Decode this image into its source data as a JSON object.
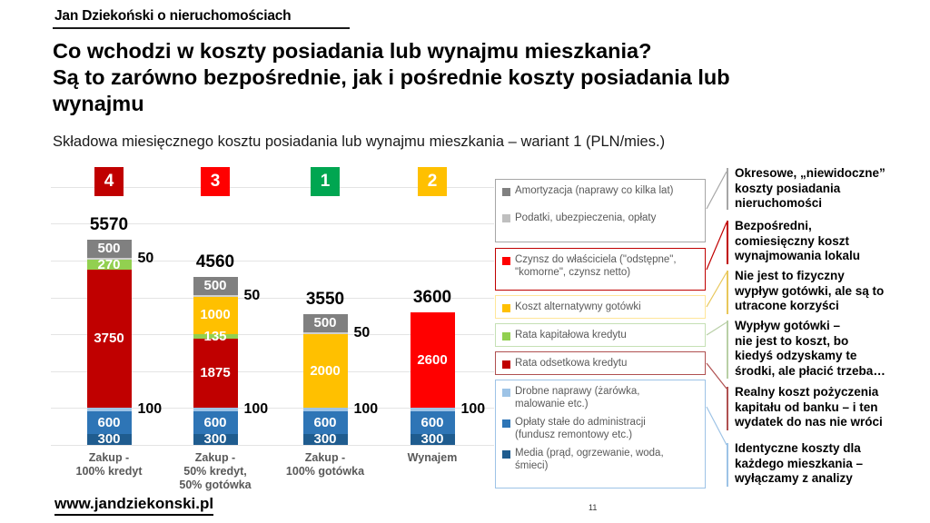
{
  "header": {
    "brand": "Jan Dziekoński o nieruchomościach",
    "title": "Co wchodzi w koszty posiadania lub wynajmu mieszkania?\nSą to zarówno bezpośrednie, jak i pośrednie koszty posiadania lub\nwynajmu",
    "subtitle": "Składowa miesięcznego kosztu posiadania lub wynajmu mieszkania – wariant 1 (PLN/mies.)"
  },
  "chart_data": {
    "type": "bar",
    "stacked": true,
    "title": "Składowa miesięcznego kosztu posiadania lub wynajmu mieszkania – wariant 1 (PLN/mies.)",
    "unit": "PLN/mies.",
    "ylim": [
      0,
      7000
    ],
    "gridline_step": 1000,
    "grid": true,
    "bars": [
      {
        "badge": "4",
        "badge_color": "#c00000",
        "total": 5570,
        "category": "Zakup -\n100% kredyt",
        "segments": [
          {
            "name": "Media (prąd, ogrzewanie, woda, śmieci)",
            "value": 300,
            "color": "#1f5c8f",
            "label_pos": "inside"
          },
          {
            "name": "Opłaty stałe do administracji (fundusz remontowy etc.)",
            "value": 600,
            "color": "#2e75b6",
            "label_pos": "inside"
          },
          {
            "name": "Drobne naprawy (żarówka, malowanie etc.)",
            "value": 100,
            "color": "#9dc3e6",
            "label_pos": "outside"
          },
          {
            "name": "Rata odsetkowa kredytu",
            "value": 3750,
            "color": "#c00000",
            "label_pos": "inside"
          },
          {
            "name": "Rata kapitałowa kredytu",
            "value": 270,
            "color": "#92d050",
            "label_pos": "inside"
          },
          {
            "name": "Podatki, ubezpieczenia, opłaty",
            "value": 50,
            "color": "#cfcfcf",
            "label_pos": "outside"
          },
          {
            "name": "Amortyzacja (naprawy co kilka lat)",
            "value": 500,
            "color": "#808080",
            "label_pos": "inside"
          }
        ]
      },
      {
        "badge": "3",
        "badge_color": "#ff0000",
        "total": 4560,
        "category": "Zakup -\n50% kredyt,\n50% gotówka",
        "segments": [
          {
            "name": "Media (prąd, ogrzewanie, woda, śmieci)",
            "value": 300,
            "color": "#1f5c8f",
            "label_pos": "inside"
          },
          {
            "name": "Opłaty stałe do administracji (fundusz remontowy etc.)",
            "value": 600,
            "color": "#2e75b6",
            "label_pos": "inside"
          },
          {
            "name": "Drobne naprawy (żarówka, malowanie etc.)",
            "value": 100,
            "color": "#9dc3e6",
            "label_pos": "outside"
          },
          {
            "name": "Rata odsetkowa kredytu",
            "value": 1875,
            "color": "#c00000",
            "label_pos": "inside"
          },
          {
            "name": "Rata kapitałowa kredytu",
            "value": 135,
            "color": "#92d050",
            "label_pos": "inside"
          },
          {
            "name": "Koszt alternatywny gotówki",
            "value": 1000,
            "color": "#ffc000",
            "label_pos": "inside"
          },
          {
            "name": "Podatki, ubezpieczenia, opłaty",
            "value": 50,
            "color": "#cfcfcf",
            "label_pos": "outside"
          },
          {
            "name": "Amortyzacja (naprawy co kilka lat)",
            "value": 500,
            "color": "#808080",
            "label_pos": "inside"
          }
        ]
      },
      {
        "badge": "1",
        "badge_color": "#00a651",
        "total": 3550,
        "category": "Zakup -\n100% gotówka",
        "segments": [
          {
            "name": "Media (prąd, ogrzewanie, woda, śmieci)",
            "value": 300,
            "color": "#1f5c8f",
            "label_pos": "inside"
          },
          {
            "name": "Opłaty stałe do administracji (fundusz remontowy etc.)",
            "value": 600,
            "color": "#2e75b6",
            "label_pos": "inside"
          },
          {
            "name": "Drobne naprawy (żarówka, malowanie etc.)",
            "value": 100,
            "color": "#9dc3e6",
            "label_pos": "outside"
          },
          {
            "name": "Koszt alternatywny gotówki",
            "value": 2000,
            "color": "#ffc000",
            "label_pos": "inside"
          },
          {
            "name": "Podatki, ubezpieczenia, opłaty",
            "value": 50,
            "color": "#cfcfcf",
            "label_pos": "outside"
          },
          {
            "name": "Amortyzacja (naprawy co kilka lat)",
            "value": 500,
            "color": "#808080",
            "label_pos": "inside"
          }
        ]
      },
      {
        "badge": "2",
        "badge_color": "#ffc000",
        "total": 3600,
        "category": "Wynajem",
        "segments": [
          {
            "name": "Media (prąd, ogrzewanie, woda, śmieci)",
            "value": 300,
            "color": "#1f5c8f",
            "label_pos": "inside"
          },
          {
            "name": "Opłaty stałe do administracji (fundusz remontowy etc.)",
            "value": 600,
            "color": "#2e75b6",
            "label_pos": "inside"
          },
          {
            "name": "Drobne naprawy (żarówka, malowanie etc.)",
            "value": 100,
            "color": "#9dc3e6",
            "label_pos": "outside"
          },
          {
            "name": "Czynsz do właściciela (\"odstępne\", \"komorne\", czynsz netto)",
            "value": 2600,
            "color": "#ff0000",
            "label_pos": "inside"
          }
        ]
      }
    ]
  },
  "legend": {
    "boxes": [
      {
        "border": "#a6a6a6",
        "items": [
          {
            "swatch": "#808080",
            "text": "Amortyzacja (naprawy co kilka lat)"
          },
          {
            "swatch": "#bfbfbf",
            "text": "Podatki, ubezpieczenia, opłaty"
          }
        ]
      },
      {
        "border": "#c00000",
        "items": [
          {
            "swatch": "#ff0000",
            "text": "Czynsz do właściciela (\"odstępne\",\n\"komorne\", czynsz netto)"
          }
        ]
      },
      {
        "border": "#ffe699",
        "items": [
          {
            "swatch": "#ffc000",
            "text": "Koszt alternatywny gotówki"
          }
        ]
      },
      {
        "border": "#c5e0b4",
        "items": [
          {
            "swatch": "#92d050",
            "text": "Rata kapitałowa kredytu"
          }
        ]
      },
      {
        "border": "#b05050",
        "items": [
          {
            "swatch": "#c00000",
            "text": "Rata odsetkowa kredytu"
          }
        ]
      },
      {
        "border": "#9dc3e6",
        "items": [
          {
            "swatch": "#9dc3e6",
            "text": "Drobne naprawy (żarówka,\nmalowanie etc.)"
          },
          {
            "swatch": "#2e75b6",
            "text": "Opłaty stałe do administracji\n(fundusz remontowy etc.)"
          },
          {
            "swatch": "#1f5c8f",
            "text": "Media (prąd, ogrzewanie, woda,\nśmieci)"
          }
        ]
      }
    ]
  },
  "annotations": [
    {
      "text": "Okresowe, „niewidoczne”\nkoszty posiadania\nnieruchomości",
      "tick_color": "#a6a6a6"
    },
    {
      "text": "Bezpośredni,\ncomiesięczny koszt\nwynajmowania lokalu",
      "tick_color": "#c00000"
    },
    {
      "text": "Nie jest to fizyczny\nwypływ gotówki, ale są to\nutracone korzyści",
      "tick_color": "#e8c75a"
    },
    {
      "text": "Wypływ gotówki –\nnie jest to koszt, bo\nkiedyś odzyskamy te\nśrodki, ale płacić trzeba…",
      "tick_color": "#b8cfa6"
    },
    {
      "text": "Realny koszt pożyczenia\nkapitału od banku – i ten\nwydatek do nas nie wróci",
      "tick_color": "#b05050"
    },
    {
      "text": "Identyczne koszty dla\nkażdego mieszkania –\nwyłączamy z analizy",
      "tick_color": "#9dc3e6"
    }
  ],
  "footer": {
    "url": "www.jandziekonski.pl",
    "page": "11"
  }
}
